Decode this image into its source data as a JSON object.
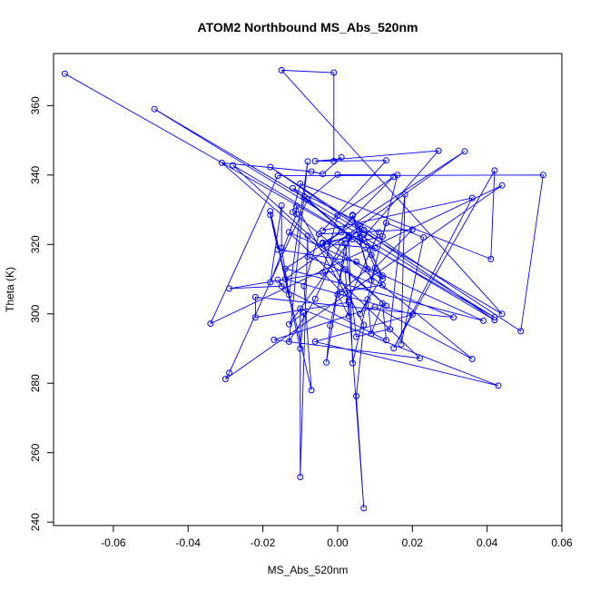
{
  "chart_data": {
    "type": "line",
    "title": "ATOM2 Northbound MS_Abs_520nm",
    "xlabel": "MS_Abs_520nm",
    "ylabel": "Theta (K)",
    "xlim": [
      -0.076,
      0.06
    ],
    "ylim": [
      239,
      375
    ],
    "x_ticks": [
      -0.06,
      -0.04,
      -0.02,
      0.0,
      0.02,
      0.04,
      0.06
    ],
    "x_tick_labels": [
      "-0.06",
      "-0.04",
      "-0.02",
      "0.00",
      "0.02",
      "0.04",
      "0.06"
    ],
    "y_ticks": [
      240,
      260,
      280,
      300,
      320,
      340,
      360
    ],
    "y_tick_labels": [
      "240",
      "260",
      "280",
      "300",
      "320",
      "340",
      "360"
    ],
    "grid": false,
    "markers": "open-circle",
    "color": "#0000ff",
    "series": [
      {
        "points": [
          [
            -0.073,
            369.2
          ],
          [
            0.042,
            299.0
          ],
          [
            -0.049,
            359.0
          ],
          [
            0.044,
            300.0
          ],
          [
            -0.015,
            370.2
          ],
          [
            -0.001,
            369.5
          ],
          [
            -0.001,
            344.0
          ],
          [
            0.001,
            345.1
          ],
          [
            -0.004,
            340.3
          ],
          [
            -0.007,
            341.0
          ],
          [
            -0.031,
            343.5
          ],
          [
            0.013,
            302.3
          ],
          [
            -0.028,
            342.8
          ],
          [
            0.042,
            298.2
          ],
          [
            -0.018,
            342.3
          ],
          [
            0.049,
            295.0
          ],
          [
            0.055,
            340.0
          ],
          [
            -0.016,
            339.8
          ],
          [
            -0.034,
            297.2
          ],
          [
            0.044,
            337.0
          ],
          [
            -0.03,
            281.2
          ],
          [
            -0.029,
            283.0
          ],
          [
            -0.008,
            333.0
          ],
          [
            0.0,
            340.1
          ],
          [
            0.016,
            340.0
          ],
          [
            0.012,
            322.3
          ],
          [
            0.006,
            320.9
          ],
          [
            0.027,
            347.0
          ],
          [
            -0.006,
            344.0
          ],
          [
            0.013,
            344.2
          ],
          [
            -0.004,
            324.0
          ],
          [
            0.036,
            333.4
          ],
          [
            0.015,
            290.1
          ],
          [
            0.042,
            341.3
          ],
          [
            0.041,
            315.8
          ],
          [
            -0.01,
            337.5
          ],
          [
            -0.012,
            329.3
          ],
          [
            0.036,
            287.0
          ],
          [
            0.01,
            302.0
          ],
          [
            -0.017,
            292.5
          ],
          [
            0.022,
            287.2
          ],
          [
            -0.013,
            323.5
          ],
          [
            0.039,
            298.0
          ],
          [
            -0.014,
            313.0
          ],
          [
            0.034,
            346.8
          ],
          [
            -0.014,
            310.0
          ],
          [
            0.02,
            299.8
          ],
          [
            -0.006,
            292.0
          ],
          [
            0.043,
            279.3
          ],
          [
            -0.01,
            301.5
          ],
          [
            -0.01,
            253.0
          ],
          [
            -0.008,
            322.5
          ],
          [
            -0.008,
            316.5
          ],
          [
            0.031,
            299.0
          ],
          [
            -0.022,
            304.8
          ],
          [
            -0.022,
            299.0
          ],
          [
            0.003,
            303.3
          ],
          [
            0.007,
            244.0
          ],
          [
            0.005,
            276.3
          ],
          [
            0.007,
            296.8
          ],
          [
            -0.004,
            320.3
          ],
          [
            0.01,
            318.9
          ],
          [
            0.006,
            322.0
          ],
          [
            0.006,
            325.2
          ],
          [
            -0.013,
            297.0
          ],
          [
            -0.009,
            300.3
          ],
          [
            -0.01,
            290.0
          ],
          [
            -0.018,
            329.6
          ],
          [
            -0.007,
            278.0
          ],
          [
            -0.009,
            308.0
          ],
          [
            -0.005,
            323.0
          ],
          [
            0.02,
            324.3
          ],
          [
            0.01,
            313.2
          ],
          [
            0.004,
            285.8
          ],
          [
            0.003,
            322.0
          ],
          [
            -0.002,
            296.6
          ],
          [
            -0.003,
            286.0
          ],
          [
            0.002,
            320.3
          ],
          [
            0.005,
            293.4
          ],
          [
            0.014,
            295.6
          ],
          [
            0.018,
            334.4
          ],
          [
            0.017,
            291.2
          ],
          [
            0.023,
            322.0
          ],
          [
            0.013,
            326.2
          ],
          [
            0.009,
            309.7
          ],
          [
            0.004,
            328.5
          ],
          [
            0.012,
            308.3
          ],
          [
            0.001,
            306.3
          ],
          [
            -0.004,
            311.9
          ],
          [
            0.0,
            328.3
          ],
          [
            0.015,
            339.5
          ],
          [
            -0.003,
            320.0
          ],
          [
            0.007,
            324.2
          ],
          [
            0.003,
            322.5
          ],
          [
            -0.012,
            336.2
          ],
          [
            0.011,
            323.5
          ],
          [
            0.003,
            304.0
          ],
          [
            -0.011,
            331.0
          ],
          [
            -0.011,
            328.7
          ],
          [
            -0.018,
            309.1
          ],
          [
            -0.015,
            331.2
          ],
          [
            -0.015,
            319.0
          ],
          [
            -0.013,
            305.5
          ],
          [
            -0.008,
            343.9
          ],
          [
            -0.013,
            292.0
          ],
          [
            -0.006,
            304.3
          ],
          [
            0.001,
            320.5
          ],
          [
            0.004,
            321.5
          ],
          [
            -0.009,
            333.8
          ],
          [
            0.009,
            317.0
          ],
          [
            0.012,
            311.0
          ],
          [
            0.006,
            300.0
          ],
          [
            0.008,
            304.2
          ],
          [
            0.009,
            294.3
          ],
          [
            0.012,
            303.0
          ],
          [
            0.013,
            292.4
          ],
          [
            -0.014,
            307.0
          ],
          [
            -0.016,
            309.8
          ],
          [
            -0.015,
            308.0
          ],
          [
            -0.029,
            307.3
          ],
          [
            0.002,
            312.8
          ],
          [
            0.003,
            299.3
          ],
          [
            0.0,
            305.6
          ],
          [
            0.008,
            313.0
          ],
          [
            0.004,
            328.2
          ],
          [
            0.001,
            323.5
          ],
          [
            -0.004,
            320.5
          ],
          [
            0.007,
            322.8
          ],
          [
            0.012,
            310.0
          ],
          [
            0.005,
            315.0
          ],
          [
            -0.016,
            318.5
          ],
          [
            -0.018,
            328.5
          ]
        ]
      }
    ]
  }
}
